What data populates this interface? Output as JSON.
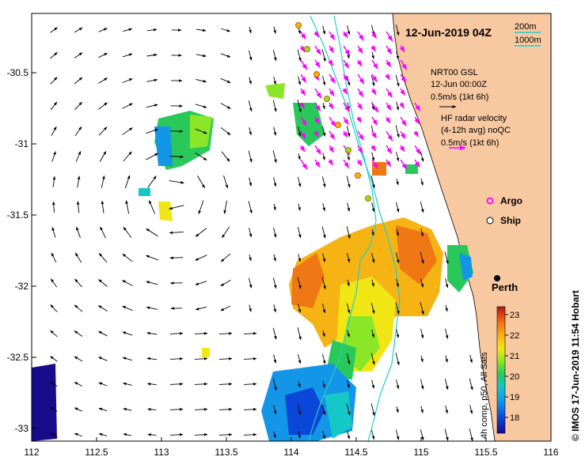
{
  "map": {
    "title": "12-Jun-2019 04Z",
    "scale": {
      "contour1": "200m",
      "contour2": "1000m"
    },
    "legend": {
      "model_title": "NRT00 GSL",
      "model_time": "12-Jun 00:00Z",
      "model_scale": "0.5m/s (1kt 6h)",
      "hf_title": "HF radar velocity",
      "hf_sub": "(4-12h avg) noQC",
      "hf_scale": "0.5m/s (1kt 6h)"
    },
    "markers": {
      "argo": "Argo",
      "ship": "Ship"
    },
    "city": "Perth",
    "colorbar": {
      "ticks": [
        "23",
        "22",
        "21",
        "20",
        "19",
        "18"
      ],
      "label": "4h comp, p50, All Sats",
      "colors": [
        "#1a0a8c",
        "#0a46d8",
        "#1496e8",
        "#14c8c8",
        "#28c85a",
        "#8ce628",
        "#f0e614",
        "#f5b414",
        "#f07814",
        "#e03c14",
        "#a01e14"
      ]
    },
    "credit": "© IMOS 17-Jun-2019 11:54 Hobart",
    "x_ticks": [
      "112",
      "112.5",
      "113",
      "113.5",
      "114",
      "114.5",
      "115",
      "115.5",
      "116"
    ],
    "y_ticks": [
      "-30.5",
      "-31",
      "-31.5",
      "-32",
      "-32.5",
      "-33"
    ],
    "colors": {
      "land": "#f8c8a0",
      "argo": "#ff00ff",
      "contour": "#22cccc",
      "hf_arrow": "#ff00ff",
      "frame": "#000000"
    }
  }
}
